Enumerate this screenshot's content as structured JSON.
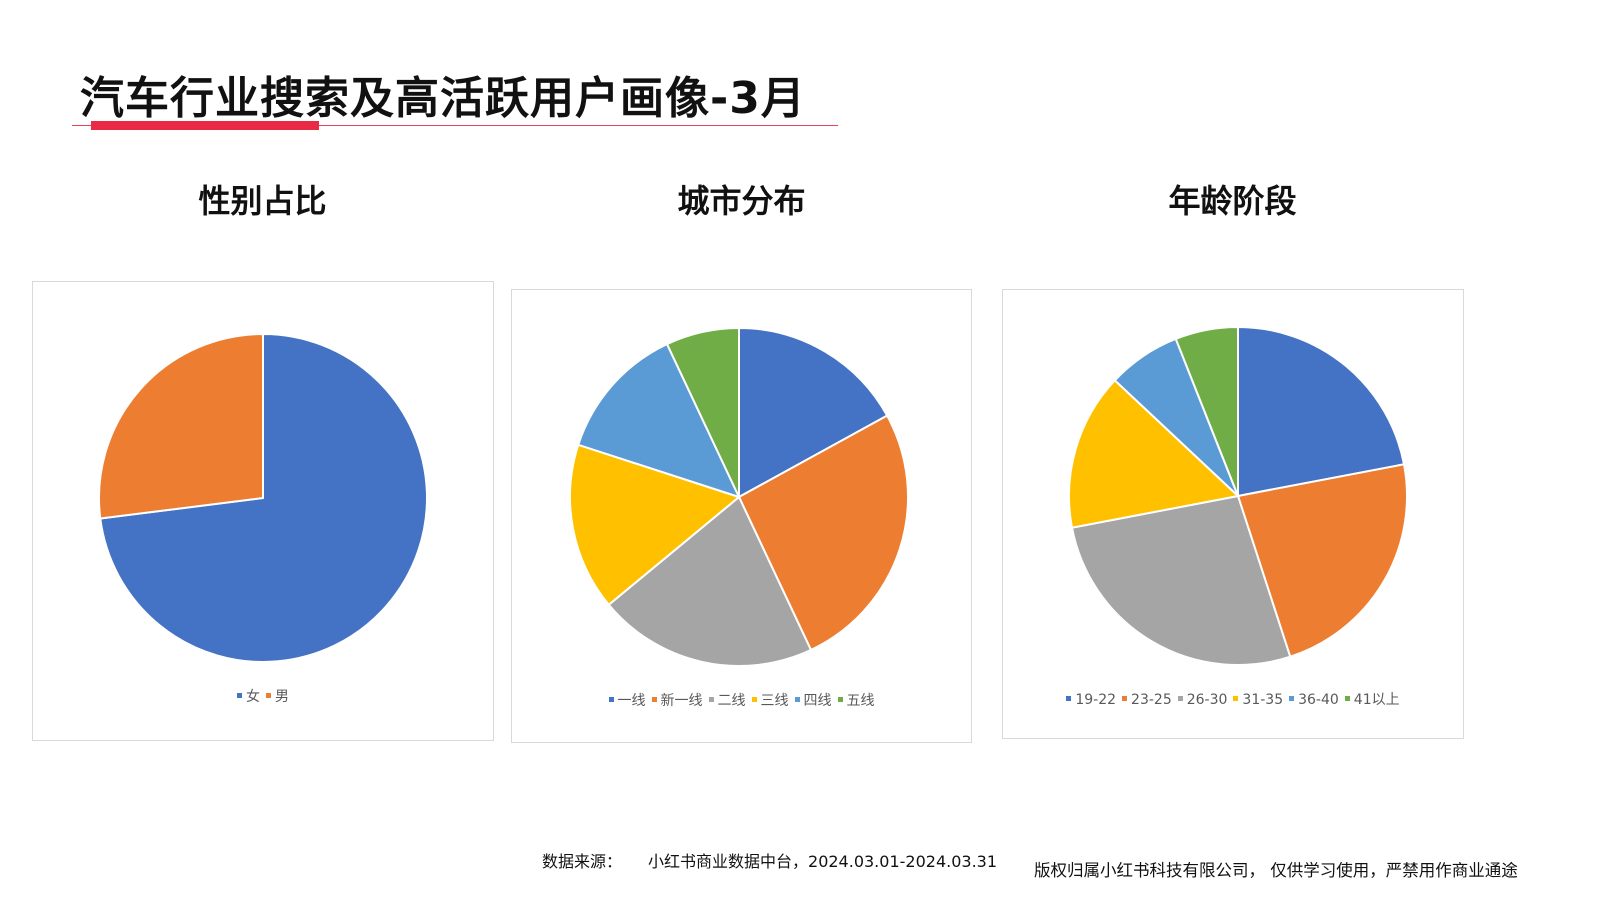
{
  "header": {
    "title": "汽车行业搜索及高活跃用户画像-3月",
    "accent_color": "#ea2a45"
  },
  "sections": [
    {
      "title": "性别占比"
    },
    {
      "title": "城市分布"
    },
    {
      "title": "年龄阶段"
    }
  ],
  "chart_data": [
    {
      "type": "pie",
      "title": "",
      "categories": [
        "女",
        "男"
      ],
      "values": [
        73,
        27
      ],
      "colors": [
        "#4472c4",
        "#ed7d31"
      ],
      "legend_position": "bottom",
      "start_angle": "12 o'clock, clockwise"
    },
    {
      "type": "pie",
      "title": "",
      "categories": [
        "一线",
        "新一线",
        "二线",
        "三线",
        "四线",
        "五线"
      ],
      "values": [
        17,
        26,
        21,
        16,
        13,
        7
      ],
      "colors": [
        "#4472c4",
        "#ed7d31",
        "#a5a5a5",
        "#ffc000",
        "#5b9bd5",
        "#70ad47"
      ],
      "legend_position": "bottom",
      "start_angle": "12 o'clock, clockwise"
    },
    {
      "type": "pie",
      "title": "",
      "categories": [
        "19-22",
        "23-25",
        "26-30",
        "31-35",
        "36-40",
        "41以上"
      ],
      "values": [
        22,
        23,
        27,
        15,
        7,
        6
      ],
      "colors": [
        "#4472c4",
        "#ed7d31",
        "#a5a5a5",
        "#ffc000",
        "#5b9bd5",
        "#70ad47"
      ],
      "legend_position": "bottom",
      "start_angle": "12 o'clock, clockwise"
    }
  ],
  "footer": {
    "source_label": "数据来源：",
    "source_text": "小红书商业数据中台，2024.03.01-2024.03.31",
    "copyright": "版权归属小红书科技有限公司，  仅供学习使用，严禁用作商业通途"
  }
}
